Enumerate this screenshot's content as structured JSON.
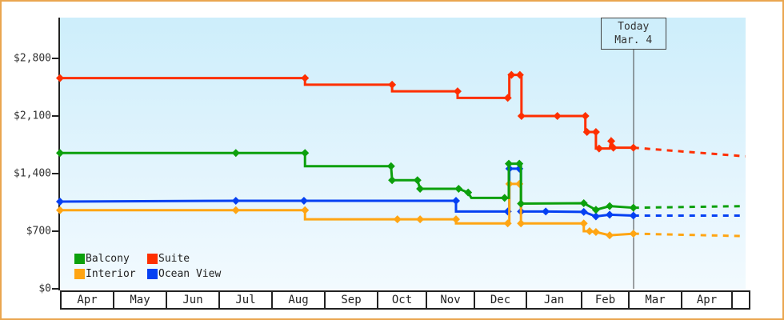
{
  "chart_data": {
    "type": "line",
    "title": "",
    "y_axis": {
      "tick_labels": [
        "$0",
        "$700",
        "$1,400",
        "$2,100",
        "$2,800"
      ],
      "tick_values": [
        0,
        700,
        1400,
        2100,
        2800
      ],
      "range": [
        0,
        2800
      ],
      "grid": false
    },
    "x_axis": {
      "month_labels": [
        "Apr",
        "May",
        "Jun",
        "Jul",
        "Aug",
        "Sep",
        "Oct",
        "Nov",
        "Dec",
        "Jan",
        "Feb",
        "Mar",
        "Apr",
        ""
      ]
    },
    "annotation": {
      "line1": "Today",
      "line2": "Mar. 4",
      "month_x": 10.86
    },
    "legend": [
      {
        "label": "Balcony",
        "series": "Balcony"
      },
      {
        "label": "Suite",
        "series": "Suite"
      },
      {
        "label": "Interior",
        "series": "Interior"
      },
      {
        "label": "Ocean View",
        "series": "Ocean View"
      }
    ],
    "series": [
      {
        "name": "Suite",
        "color": "#fe2f00",
        "points": [
          [
            0,
            2560,
            1
          ],
          [
            4.64,
            2560,
            1
          ],
          [
            4.64,
            2480,
            0
          ],
          [
            6.29,
            2480,
            1
          ],
          [
            6.29,
            2400,
            0
          ],
          [
            7.53,
            2400,
            1
          ],
          [
            7.53,
            2320,
            0
          ],
          [
            8.48,
            2320,
            1
          ],
          [
            8.51,
            2320,
            0
          ],
          [
            8.51,
            2600,
            0
          ],
          [
            8.55,
            2600,
            1
          ],
          [
            8.71,
            2600,
            1
          ],
          [
            8.74,
            2600,
            0
          ],
          [
            8.74,
            2100,
            1
          ],
          [
            9.42,
            2100,
            1
          ],
          [
            9.95,
            2100,
            1
          ],
          [
            9.95,
            1905,
            0
          ],
          [
            9.98,
            1905,
            1
          ],
          [
            10.15,
            1905,
            1
          ],
          [
            10.15,
            1705,
            0
          ],
          [
            10.21,
            1705,
            1
          ],
          [
            10.41,
            1705,
            0
          ],
          [
            10.44,
            1795,
            1
          ],
          [
            10.48,
            1715,
            1
          ],
          [
            10.86,
            1715,
            1
          ]
        ],
        "forecast": [
          [
            10.86,
            1715
          ],
          [
            12.98,
            1610
          ]
        ]
      },
      {
        "name": "Ocean View",
        "color": "#0540f2",
        "points": [
          [
            0,
            1060,
            1
          ],
          [
            3.33,
            1070,
            1
          ],
          [
            4.62,
            1070,
            1
          ],
          [
            7.5,
            1070,
            1
          ],
          [
            7.5,
            940,
            0
          ],
          [
            8.48,
            940,
            1
          ],
          [
            8.51,
            940,
            0
          ],
          [
            8.51,
            1460,
            1
          ],
          [
            8.7,
            1460,
            1
          ],
          [
            8.73,
            1460,
            0
          ],
          [
            8.73,
            940,
            1
          ],
          [
            9.2,
            940,
            1
          ],
          [
            9.92,
            935,
            1
          ],
          [
            10.15,
            880,
            1
          ],
          [
            10.41,
            900,
            1
          ],
          [
            10.86,
            890,
            1
          ]
        ],
        "forecast": [
          [
            10.86,
            890
          ],
          [
            12.98,
            890
          ]
        ]
      },
      {
        "name": "Interior",
        "color": "#ffa513",
        "points": [
          [
            0,
            955,
            1
          ],
          [
            3.33,
            955,
            1
          ],
          [
            4.64,
            955,
            1
          ],
          [
            4.64,
            845,
            0
          ],
          [
            6.39,
            845,
            1
          ],
          [
            6.82,
            845,
            1
          ],
          [
            7.5,
            845,
            1
          ],
          [
            7.5,
            795,
            0
          ],
          [
            8.48,
            795,
            1
          ],
          [
            8.51,
            795,
            0
          ],
          [
            8.51,
            1275,
            1
          ],
          [
            8.7,
            1275,
            1
          ],
          [
            8.73,
            1275,
            0
          ],
          [
            8.73,
            795,
            1
          ],
          [
            9.92,
            795,
            1
          ],
          [
            9.92,
            700,
            0
          ],
          [
            10.03,
            700,
            1
          ],
          [
            10.15,
            690,
            1
          ],
          [
            10.41,
            650,
            1
          ],
          [
            10.86,
            670,
            1
          ]
        ],
        "forecast": [
          [
            10.86,
            670
          ],
          [
            12.98,
            640
          ]
        ]
      },
      {
        "name": "Balcony",
        "color": "#0ca00c",
        "points": [
          [
            0,
            1650,
            1
          ],
          [
            3.33,
            1650,
            1
          ],
          [
            4.64,
            1650,
            1
          ],
          [
            4.64,
            1490,
            0
          ],
          [
            6.27,
            1490,
            1
          ],
          [
            6.29,
            1320,
            1
          ],
          [
            6.77,
            1320,
            1
          ],
          [
            6.82,
            1215,
            1
          ],
          [
            7.55,
            1215,
            1
          ],
          [
            7.73,
            1170,
            1
          ],
          [
            7.79,
            1105,
            0
          ],
          [
            8.42,
            1105,
            1
          ],
          [
            8.5,
            1105,
            0
          ],
          [
            8.5,
            1520,
            1
          ],
          [
            8.7,
            1520,
            1
          ],
          [
            8.73,
            1520,
            0
          ],
          [
            8.73,
            1035,
            1
          ],
          [
            9.92,
            1040,
            1
          ],
          [
            10.15,
            960,
            1
          ],
          [
            10.41,
            1005,
            1
          ],
          [
            10.86,
            985,
            1
          ]
        ],
        "forecast": [
          [
            10.86,
            985
          ],
          [
            12.98,
            1005
          ]
        ]
      }
    ],
    "colors": {
      "frame_border": "#eaa64f",
      "axis": "#222222",
      "plot_bg_top": "#cdeefb",
      "plot_bg_bottom": "#f2fafe"
    }
  }
}
